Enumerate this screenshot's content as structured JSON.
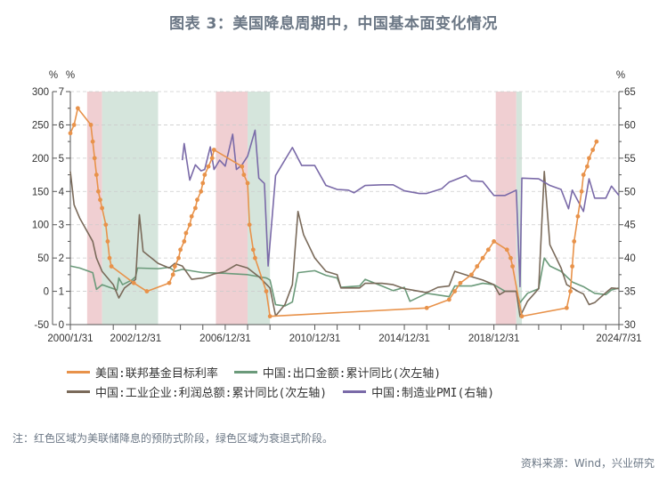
{
  "title": "图表 3：美国降息周期中，中国基本面变化情况",
  "note": "注：红色区域为美联储降息的预防式阶段，绿色区域为衰退式阶段。",
  "source": "资料来源：Wind，兴业研究",
  "legend": [
    {
      "label": "美国:联邦基金目标利率",
      "color": "#e8924a"
    },
    {
      "label": "中国:出口金额:累计同比(次左轴)",
      "color": "#6b9a7a"
    },
    {
      "label": "中国:工业企业:利润总额:累计同比(次左轴)",
      "color": "#7a6a5a"
    },
    {
      "label": "中国:制造业PMI(右轴)",
      "color": "#7a6aa8"
    }
  ],
  "colors": {
    "red_band": "#f0cfd2",
    "green_band": "#d5e5dc",
    "grid": "#cccccc",
    "axis": "#555555"
  },
  "chart_data": {
    "type": "line",
    "title": "图表 3：美国降息周期中，中国基本面变化情况",
    "xlabel": "",
    "x_ticks": [
      "2000/1/31",
      "2002/12/31",
      "2006/12/31",
      "2010/12/31",
      "2014/12/31",
      "2018/12/31",
      "2024/7/31"
    ],
    "axes": {
      "secondary_left": {
        "unit": "%",
        "ticks": [
          300,
          250,
          200,
          150,
          100,
          50,
          0,
          -50
        ],
        "ylim": [
          -50,
          300
        ]
      },
      "left": {
        "unit": "%",
        "ticks": [
          7,
          6,
          5,
          4,
          3,
          2,
          1,
          0
        ],
        "ylim": [
          0,
          7
        ]
      },
      "right": {
        "unit": "%",
        "ticks": [
          65,
          60,
          55,
          50,
          45,
          40,
          35,
          30
        ],
        "ylim": [
          30,
          65
        ]
      }
    },
    "shaded_regions": [
      {
        "type": "precautionary",
        "color": "red",
        "start": "2000-10",
        "end": "2001-06"
      },
      {
        "type": "recession",
        "color": "green",
        "start": "2001-06",
        "end": "2003-12"
      },
      {
        "type": "precautionary",
        "color": "red",
        "start": "2006-07",
        "end": "2007-12"
      },
      {
        "type": "recession",
        "color": "green",
        "start": "2007-12",
        "end": "2008-12"
      },
      {
        "type": "precautionary",
        "color": "red",
        "start": "2019-01",
        "end": "2019-12"
      },
      {
        "type": "recession",
        "color": "green",
        "start": "2019-12",
        "end": "2020-03"
      }
    ],
    "series": [
      {
        "name": "美国:联邦基金目标利率",
        "axis": "left",
        "points": [
          [
            "2000-01",
            5.75
          ],
          [
            "2000-03",
            6.0
          ],
          [
            "2000-05",
            6.5
          ],
          [
            "2000-12",
            6.0
          ],
          [
            "2001-01",
            5.5
          ],
          [
            "2001-02",
            5.0
          ],
          [
            "2001-03",
            4.5
          ],
          [
            "2001-04",
            4.0
          ],
          [
            "2001-05",
            3.75
          ],
          [
            "2001-06",
            3.5
          ],
          [
            "2001-08",
            3.0
          ],
          [
            "2001-09",
            2.5
          ],
          [
            "2001-10",
            2.0
          ],
          [
            "2001-11",
            1.75
          ],
          [
            "2002-11",
            1.25
          ],
          [
            "2003-06",
            1.0
          ],
          [
            "2004-06",
            1.25
          ],
          [
            "2004-08",
            1.5
          ],
          [
            "2004-09",
            1.75
          ],
          [
            "2004-11",
            2.0
          ],
          [
            "2004-12",
            2.25
          ],
          [
            "2005-02",
            2.5
          ],
          [
            "2005-03",
            2.75
          ],
          [
            "2005-05",
            3.0
          ],
          [
            "2005-06",
            3.25
          ],
          [
            "2005-08",
            3.5
          ],
          [
            "2005-09",
            3.75
          ],
          [
            "2005-11",
            4.0
          ],
          [
            "2005-12",
            4.25
          ],
          [
            "2006-01",
            4.5
          ],
          [
            "2006-03",
            4.75
          ],
          [
            "2006-05",
            5.0
          ],
          [
            "2006-06",
            5.25
          ],
          [
            "2007-09",
            4.75
          ],
          [
            "2007-10",
            4.5
          ],
          [
            "2007-12",
            4.25
          ],
          [
            "2008-01",
            3.0
          ],
          [
            "2008-03",
            2.25
          ],
          [
            "2008-04",
            2.0
          ],
          [
            "2008-10",
            1.0
          ],
          [
            "2008-12",
            0.25
          ],
          [
            "2015-12",
            0.5
          ],
          [
            "2016-12",
            0.75
          ],
          [
            "2017-03",
            1.0
          ],
          [
            "2017-06",
            1.25
          ],
          [
            "2017-12",
            1.5
          ],
          [
            "2018-03",
            1.75
          ],
          [
            "2018-06",
            2.0
          ],
          [
            "2018-09",
            2.25
          ],
          [
            "2018-12",
            2.5
          ],
          [
            "2019-07",
            2.25
          ],
          [
            "2019-09",
            2.0
          ],
          [
            "2019-10",
            1.75
          ],
          [
            "2020-03",
            0.25
          ],
          [
            "2022-03",
            0.5
          ],
          [
            "2022-05",
            1.0
          ],
          [
            "2022-06",
            1.75
          ],
          [
            "2022-07",
            2.5
          ],
          [
            "2022-09",
            3.25
          ],
          [
            "2022-11",
            4.0
          ],
          [
            "2022-12",
            4.5
          ],
          [
            "2023-02",
            4.75
          ],
          [
            "2023-03",
            5.0
          ],
          [
            "2023-05",
            5.25
          ],
          [
            "2023-07",
            5.5
          ]
        ]
      },
      {
        "name": "中国:出口金额:累计同比(次左轴)",
        "axis": "secondary_left",
        "points": [
          [
            "2000-01",
            38
          ],
          [
            "2000-06",
            35
          ],
          [
            "2001-01",
            28
          ],
          [
            "2001-03",
            3
          ],
          [
            "2001-06",
            10
          ],
          [
            "2002-02",
            2
          ],
          [
            "2002-03",
            20
          ],
          [
            "2002-05",
            10
          ],
          [
            "2002-10",
            17
          ],
          [
            "2002-12",
            22
          ],
          [
            "2003-01",
            35
          ],
          [
            "2003-12",
            34
          ],
          [
            "2004-06",
            36
          ],
          [
            "2004-09",
            30
          ],
          [
            "2005-01",
            33
          ],
          [
            "2005-12",
            28
          ],
          [
            "2006-12",
            27
          ],
          [
            "2007-12",
            25
          ],
          [
            "2008-06",
            22
          ],
          [
            "2008-10",
            20
          ],
          [
            "2008-12",
            17
          ],
          [
            "2009-03",
            -20
          ],
          [
            "2009-08",
            -22
          ],
          [
            "2009-12",
            -16
          ],
          [
            "2010-03",
            28
          ],
          [
            "2010-12",
            31
          ],
          [
            "2011-06",
            24
          ],
          [
            "2011-12",
            20
          ],
          [
            "2012-02",
            6
          ],
          [
            "2012-12",
            8
          ],
          [
            "2013-03",
            18
          ],
          [
            "2013-12",
            8
          ],
          [
            "2014-06",
            1
          ],
          [
            "2014-12",
            6
          ],
          [
            "2015-03",
            -15
          ],
          [
            "2015-12",
            -3
          ],
          [
            "2016-12",
            -8
          ],
          [
            "2017-03",
            8
          ],
          [
            "2017-12",
            8
          ],
          [
            "2018-06",
            12
          ],
          [
            "2018-12",
            10
          ],
          [
            "2019-06",
            0
          ],
          [
            "2019-12",
            0
          ],
          [
            "2020-02",
            -17
          ],
          [
            "2020-06",
            -3
          ],
          [
            "2020-12",
            4
          ],
          [
            "2021-03",
            50
          ],
          [
            "2021-06",
            38
          ],
          [
            "2021-12",
            30
          ],
          [
            "2022-06",
            14
          ],
          [
            "2022-12",
            7
          ],
          [
            "2023-03",
            2
          ],
          [
            "2023-06",
            -3
          ],
          [
            "2023-12",
            -5
          ],
          [
            "2024-03",
            2
          ],
          [
            "2024-07",
            5
          ]
        ]
      },
      {
        "name": "中国:工业企业:利润总额:累计同比(次左轴)",
        "axis": "secondary_left",
        "points": [
          [
            "2000-01",
            180
          ],
          [
            "2000-03",
            130
          ],
          [
            "2000-06",
            110
          ],
          [
            "2001-01",
            75
          ],
          [
            "2001-03",
            50
          ],
          [
            "2001-06",
            30
          ],
          [
            "2001-12",
            10
          ],
          [
            "2002-03",
            -10
          ],
          [
            "2002-06",
            5
          ],
          [
            "2002-12",
            18
          ],
          [
            "2003-02",
            115
          ],
          [
            "2003-04",
            60
          ],
          [
            "2003-12",
            42
          ],
          [
            "2004-06",
            35
          ],
          [
            "2004-09",
            42
          ],
          [
            "2005-01",
            38
          ],
          [
            "2005-06",
            18
          ],
          [
            "2005-12",
            20
          ],
          [
            "2006-06",
            26
          ],
          [
            "2006-12",
            30
          ],
          [
            "2007-06",
            40
          ],
          [
            "2007-12",
            35
          ],
          [
            "2008-06",
            22
          ],
          [
            "2008-12",
            5
          ],
          [
            "2009-03",
            -37
          ],
          [
            "2009-08",
            -20
          ],
          [
            "2009-12",
            10
          ],
          [
            "2010-03",
            120
          ],
          [
            "2010-06",
            85
          ],
          [
            "2010-12",
            50
          ],
          [
            "2011-06",
            30
          ],
          [
            "2011-12",
            25
          ],
          [
            "2012-02",
            5
          ],
          [
            "2012-12",
            5
          ],
          [
            "2013-03",
            12
          ],
          [
            "2013-12",
            12
          ],
          [
            "2014-06",
            10
          ],
          [
            "2014-12",
            4
          ],
          [
            "2015-12",
            -2
          ],
          [
            "2016-06",
            6
          ],
          [
            "2016-12",
            8
          ],
          [
            "2017-03",
            30
          ],
          [
            "2017-12",
            22
          ],
          [
            "2018-06",
            17
          ],
          [
            "2018-12",
            10
          ],
          [
            "2019-03",
            -5
          ],
          [
            "2019-06",
            0
          ],
          [
            "2019-12",
            0
          ],
          [
            "2020-02",
            -38
          ],
          [
            "2020-06",
            -15
          ],
          [
            "2020-12",
            4
          ],
          [
            "2021-03",
            180
          ],
          [
            "2021-06",
            70
          ],
          [
            "2021-12",
            35
          ],
          [
            "2022-03",
            10
          ],
          [
            "2022-09",
            0
          ],
          [
            "2022-12",
            -4
          ],
          [
            "2023-03",
            -20
          ],
          [
            "2023-06",
            -17
          ],
          [
            "2023-12",
            -2
          ],
          [
            "2024-03",
            5
          ],
          [
            "2024-07",
            4
          ]
        ]
      },
      {
        "name": "中国:制造业PMI(右轴)",
        "axis": "right",
        "points": [
          [
            "2005-01",
            54.7
          ],
          [
            "2005-02",
            57.2
          ],
          [
            "2005-05",
            51.7
          ],
          [
            "2005-08",
            54.0
          ],
          [
            "2005-11",
            53.1
          ],
          [
            "2006-01",
            53.3
          ],
          [
            "2006-04",
            56.7
          ],
          [
            "2006-06",
            53.3
          ],
          [
            "2006-09",
            54.7
          ],
          [
            "2006-12",
            53.8
          ],
          [
            "2007-04",
            58.6
          ],
          [
            "2007-06",
            53.3
          ],
          [
            "2007-09",
            54.0
          ],
          [
            "2007-12",
            55.3
          ],
          [
            "2008-04",
            59.2
          ],
          [
            "2008-06",
            52.0
          ],
          [
            "2008-09",
            51.2
          ],
          [
            "2008-11",
            38.8
          ],
          [
            "2009-03",
            52.4
          ],
          [
            "2009-12",
            56.6
          ],
          [
            "2010-05",
            53.9
          ],
          [
            "2010-12",
            53.9
          ],
          [
            "2011-06",
            50.9
          ],
          [
            "2011-12",
            50.3
          ],
          [
            "2012-06",
            50.2
          ],
          [
            "2012-09",
            49.8
          ],
          [
            "2013-03",
            50.9
          ],
          [
            "2013-12",
            51.0
          ],
          [
            "2014-06",
            51.0
          ],
          [
            "2014-12",
            50.1
          ],
          [
            "2015-08",
            49.7
          ],
          [
            "2015-12",
            49.7
          ],
          [
            "2016-08",
            50.4
          ],
          [
            "2016-12",
            51.4
          ],
          [
            "2017-09",
            52.4
          ],
          [
            "2017-12",
            51.6
          ],
          [
            "2018-06",
            51.5
          ],
          [
            "2018-12",
            49.4
          ],
          [
            "2019-06",
            49.4
          ],
          [
            "2019-12",
            50.2
          ],
          [
            "2020-02",
            35.7
          ],
          [
            "2020-03",
            52.0
          ],
          [
            "2020-12",
            51.9
          ],
          [
            "2021-06",
            50.9
          ],
          [
            "2021-12",
            50.3
          ],
          [
            "2022-04",
            47.4
          ],
          [
            "2022-06",
            50.2
          ],
          [
            "2022-12",
            47.0
          ],
          [
            "2023-03",
            51.9
          ],
          [
            "2023-06",
            49.0
          ],
          [
            "2023-12",
            49.0
          ],
          [
            "2024-03",
            50.8
          ],
          [
            "2024-07",
            49.4
          ]
        ]
      }
    ]
  }
}
